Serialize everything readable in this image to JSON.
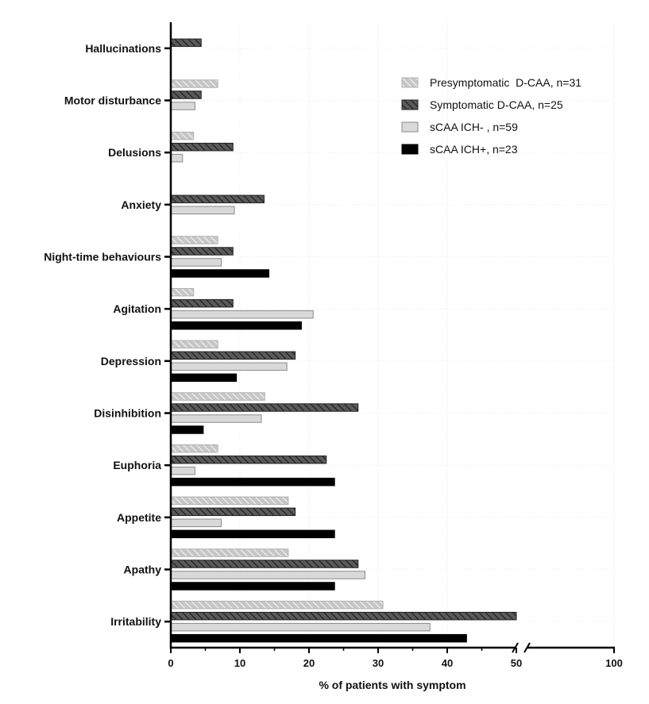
{
  "chart_data": {
    "type": "bar",
    "orientation": "horizontal",
    "categories": [
      "Hallucinations",
      "Motor disturbance",
      "Delusions",
      "Anxiety",
      "Night-time behaviours",
      "Agitation",
      "Depression",
      "Disinhibition",
      "Euphoria",
      "Appetite",
      "Apathy",
      "Irritability"
    ],
    "series": [
      {
        "name": "Presymptomatic  D-CAA, n=31",
        "color": "#c4c4c4",
        "pattern": "light-hatch",
        "values": [
          0,
          6.8,
          3.3,
          0,
          6.8,
          3.3,
          6.8,
          13.6,
          6.8,
          17,
          17,
          30.7
        ]
      },
      {
        "name": "Symptomatic D-CAA, n=25",
        "color": "#555555",
        "pattern": "dark-hatch",
        "values": [
          4.4,
          4.4,
          9,
          13.5,
          9,
          9,
          18,
          27.1,
          22.5,
          18,
          27.1,
          50
        ]
      },
      {
        "name": "sCAA ICH- , n=59",
        "color": "#d9d9d9",
        "pattern": "solid",
        "values": [
          0,
          3.5,
          1.7,
          9.2,
          7.3,
          20.6,
          16.8,
          13.1,
          3.5,
          7.3,
          28.1,
          37.5
        ]
      },
      {
        "name": "sCAA ICH+, n=23",
        "color": "#000000",
        "pattern": "solid",
        "values": [
          0,
          0,
          0,
          0,
          14.2,
          18.9,
          9.5,
          4.7,
          23.7,
          23.7,
          23.7,
          42.8
        ]
      }
    ],
    "xlabel": "% of patients with symptom",
    "xlim": [
      0,
      100
    ],
    "axis_break": [
      50,
      51
    ],
    "xticks": [
      "0",
      "10",
      "20",
      "30",
      "40",
      "50",
      "100"
    ],
    "grid": true,
    "legend_position": "top-right"
  }
}
